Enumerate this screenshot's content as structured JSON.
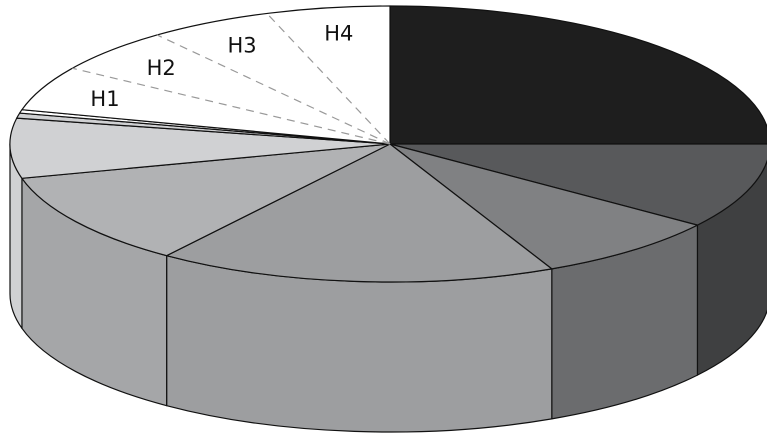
{
  "chart_data": {
    "type": "pie",
    "style": "3d-exploded-none",
    "slices": [
      {
        "value": 25,
        "color": "#1e1e1e",
        "side_color": "#1e1e1e"
      },
      {
        "value": 10,
        "color": "#58595b",
        "side_color": "#3f4041"
      },
      {
        "value": 8,
        "color": "#808183",
        "side_color": "#6b6c6e"
      },
      {
        "value": 17,
        "color": "#9d9ea0",
        "side_color": "#9d9ea0"
      },
      {
        "value": 11,
        "color": "#b1b2b4",
        "side_color": "#a5a6a8"
      },
      {
        "value": 7,
        "color": "#d0d1d3",
        "side_color": "#d0d1d3"
      },
      {
        "value": 0.6,
        "color": "#d0d1d3",
        "side_color": "#d0d1d3"
      },
      {
        "value": 0.4,
        "color": "#ffffff",
        "side_color": "#ffffff"
      },
      {
        "value": 21,
        "color": "#ffffff",
        "side_color": "#ffffff"
      }
    ],
    "subdivided_slice": {
      "slice_index": 8,
      "sub_labels": [
        "H1",
        "H2",
        "H3",
        "H4"
      ]
    }
  }
}
